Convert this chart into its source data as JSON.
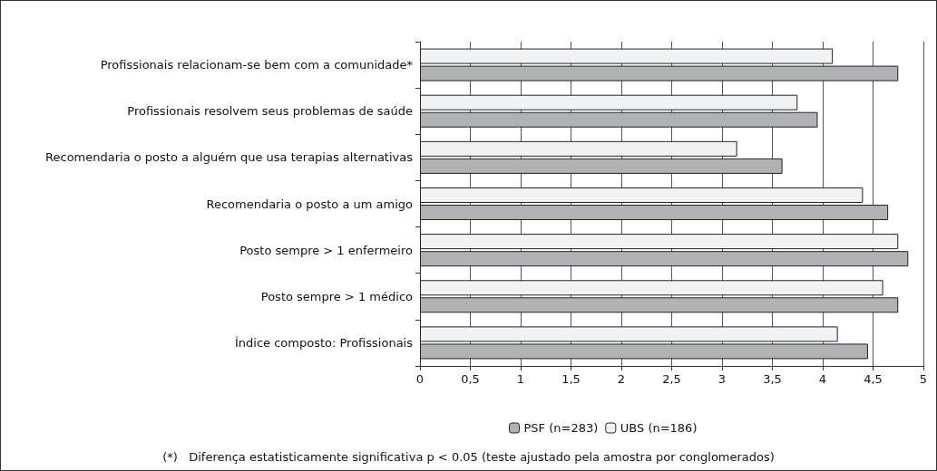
{
  "chart_data": {
    "type": "bar",
    "orientation": "horizontal",
    "categories": [
      "Profissionais relacionam-se bem com a comunidade*",
      "Profissionais resolvem seus problemas de saúde",
      "Recomendaria o posto a alguém que usa terapias alternativas",
      "Recomendaria o posto a um amigo",
      "Posto sempre > 1 enfermeiro",
      "Posto sempre > 1 médico",
      "Índice composto: Profissionais"
    ],
    "series": [
      {
        "name": "PSF (n=283)",
        "color": "#b1b2b6",
        "values": [
          4.75,
          3.95,
          3.6,
          4.65,
          4.85,
          4.75,
          4.45
        ]
      },
      {
        "name": "UBS (n=186)",
        "color": "#f1f2f4",
        "values": [
          4.1,
          3.75,
          3.15,
          4.4,
          4.75,
          4.6,
          4.15
        ]
      }
    ],
    "xlim": [
      0,
      5
    ],
    "xticks": [
      0,
      {
        "value": 0.5,
        "label": "0,5"
      },
      1,
      {
        "value": 1.5,
        "label": "1,5"
      },
      2,
      {
        "value": 2.5,
        "label": "2,5"
      },
      3,
      {
        "value": 3.5,
        "label": "3,5"
      },
      4,
      {
        "value": 4.5,
        "label": "4,5"
      },
      5
    ],
    "grid": "x",
    "legend": "bottom",
    "annotations": [
      "(*)   Diferença estatisticamente significativa p < 0.05 (teste ajustado pela amostra por conglomerados)"
    ]
  }
}
